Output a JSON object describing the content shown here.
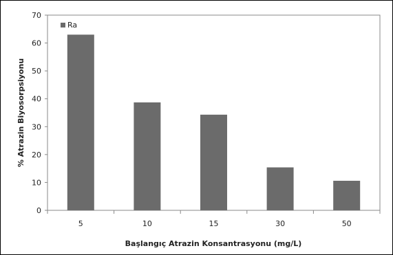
{
  "chart_data": {
    "type": "bar",
    "categories": [
      "5",
      "10",
      "15",
      "30",
      "50"
    ],
    "series": [
      {
        "name": "Ra",
        "values": [
          63,
          38.7,
          34.3,
          15.4,
          10.6
        ],
        "color": "#6b6b6b"
      }
    ],
    "xlabel": "Başlangıç Atrazin Konsantrasyonu (mg/L)",
    "ylabel": "% Atrazin Biyosorpsiyonu",
    "ylim": [
      0,
      70
    ],
    "yticks": [
      "0",
      "10",
      "20",
      "30",
      "40",
      "50",
      "60",
      "70"
    ],
    "grid": false,
    "legend": "top-left"
  }
}
